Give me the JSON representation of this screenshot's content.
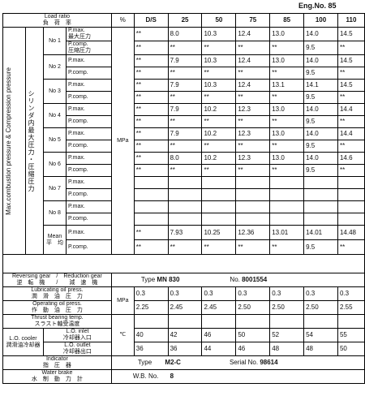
{
  "eng_no": "Eng.No. 85",
  "header": {
    "load_ratio_en": "Load ratio",
    "load_ratio_jp": "負　荷　率",
    "pct": "%",
    "cols": [
      "D/S",
      "25",
      "50",
      "75",
      "85",
      "100",
      "110"
    ]
  },
  "side_label_en": "Max.combustion pressure & Compression pressure",
  "side_label_jp": "シリンダ内最大圧力・圧縮圧力",
  "unit_mpa": "MPa",
  "pmax_en": "P.max.",
  "pmax_jp": "最大圧力",
  "pcomp_en": "P.comp.",
  "pcomp_jp": "圧縮圧力",
  "cylinders": [
    {
      "label": "No 1",
      "pmax": [
        "**",
        "8.0",
        "10.3",
        "12.4",
        "13.0",
        "14.0",
        "14.5"
      ],
      "pcomp": [
        "**",
        "**",
        "**",
        "**",
        "**",
        "9.5",
        "**"
      ]
    },
    {
      "label": "No 2",
      "pmax": [
        "**",
        "7.9",
        "10.3",
        "12.4",
        "13.0",
        "14.0",
        "14.5"
      ],
      "pcomp": [
        "**",
        "**",
        "**",
        "**",
        "**",
        "9.5",
        "**"
      ]
    },
    {
      "label": "No 3",
      "pmax": [
        "**",
        "7.9",
        "10.3",
        "12.4",
        "13.1",
        "14.1",
        "14.5"
      ],
      "pcomp": [
        "**",
        "**",
        "**",
        "**",
        "**",
        "9.5",
        "**"
      ]
    },
    {
      "label": "No 4",
      "pmax": [
        "**",
        "7.9",
        "10.2",
        "12.3",
        "13.0",
        "14.0",
        "14.4"
      ],
      "pcomp": [
        "**",
        "**",
        "**",
        "**",
        "**",
        "9.5",
        "**"
      ]
    },
    {
      "label": "No 5",
      "pmax": [
        "**",
        "7.9",
        "10.2",
        "12.3",
        "13.0",
        "14.0",
        "14.4"
      ],
      "pcomp": [
        "**",
        "**",
        "**",
        "**",
        "**",
        "9.5",
        "**"
      ]
    },
    {
      "label": "No 6",
      "pmax": [
        "**",
        "8.0",
        "10.2",
        "12.3",
        "13.0",
        "14.0",
        "14.6"
      ],
      "pcomp": [
        "**",
        "**",
        "**",
        "**",
        "**",
        "9.5",
        "**"
      ]
    },
    {
      "label": "No 7",
      "pmax": [
        "",
        "",
        "",
        "",
        "",
        "",
        ""
      ],
      "pcomp": [
        "",
        "",
        "",
        "",
        "",
        "",
        ""
      ]
    },
    {
      "label": "No 8",
      "pmax": [
        "",
        "",
        "",
        "",
        "",
        "",
        ""
      ],
      "pcomp": [
        "",
        "",
        "",
        "",
        "",
        "",
        ""
      ]
    }
  ],
  "mean": {
    "label_en": "Mean",
    "label_jp": "平　均",
    "pmax": [
      "**",
      "7.93",
      "10.25",
      "12.36",
      "13.01",
      "14.01",
      "14.48"
    ],
    "pcomp": [
      "**",
      "**",
      "**",
      "**",
      "**",
      "9.5",
      "**"
    ]
  },
  "reversing": {
    "label_en": "Reversing gear　/　Reduction gear",
    "label_jp": "逆　転　機　　/　　減　速　機",
    "type_label": "Type",
    "type_value": "MN 830",
    "no_label": "No.",
    "no_value": "8001554"
  },
  "lube": {
    "label_en": "Lubricating oil press.",
    "label_jp": "潤　滑　油　圧　力",
    "values": [
      "0.3",
      "0.3",
      "0.3",
      "0.3",
      "0.3",
      "0.3",
      "0.3"
    ]
  },
  "oper": {
    "label_en": "Operating oil press.",
    "label_jp": "作　動　油　圧　力",
    "values": [
      "2.25",
      "2.45",
      "2.45",
      "2.50",
      "2.50",
      "2.50",
      "2.55"
    ]
  },
  "thrust": {
    "label_en": "Thrust bearing temp.",
    "label_jp": "スラスト軸受温度",
    "values": [
      "",
      "",
      "",
      "",
      "",
      "",
      ""
    ]
  },
  "lo_cooler": {
    "label_en": "L.O. cooler",
    "label_jp": "潤滑油冷却器",
    "inlet_en": "L.O. inlet",
    "inlet_jp": "冷却器入口",
    "outlet_en": "L.O. outlet",
    "outlet_jp": "冷却器出口",
    "inlet_values": [
      "40",
      "42",
      "46",
      "50",
      "52",
      "54",
      "55"
    ],
    "outlet_values": [
      "36",
      "36",
      "44",
      "46",
      "48",
      "48",
      "50"
    ]
  },
  "unit_c": "℃",
  "indicator": {
    "label_en": "Indicator",
    "label_jp": "指　圧　器",
    "type_label": "Type",
    "type_value": "M2-C",
    "serial_label": "Serial No.",
    "serial_value": "98614"
  },
  "water_brake": {
    "label_en": "Water brake",
    "label_jp": "水　制　動　力　計",
    "wb_label": "W.B. No.",
    "wb_value": "8"
  }
}
